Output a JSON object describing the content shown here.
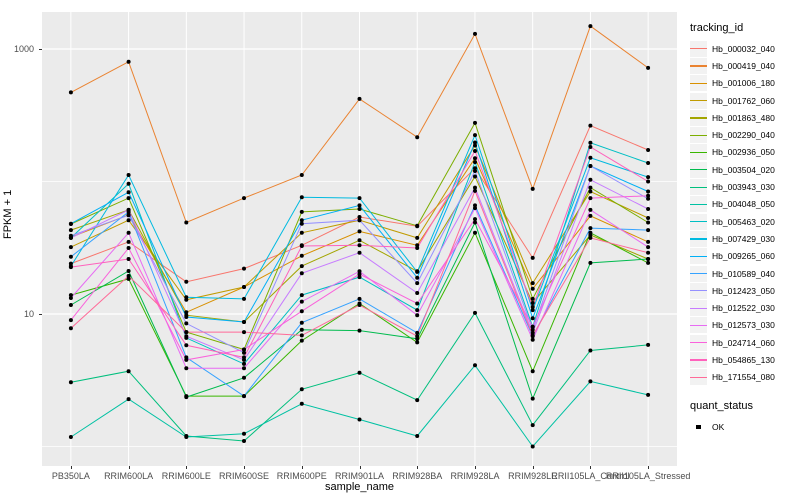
{
  "y_axis": {
    "title": "FPKM + 1",
    "scale": "log10",
    "ticks": [
      {
        "label": "1000",
        "value": 1000
      },
      {
        "label": "10",
        "value": 10
      }
    ],
    "minor_gridlines": [
      100,
      1
    ]
  },
  "x_axis": {
    "title": "sample_name",
    "categories": [
      "PB350LA",
      "RRIM600LA",
      "RRIM600LE",
      "RRIM600SE",
      "RRIM600PE",
      "RRIM901LA",
      "RRIM928BA",
      "RRIM928LA",
      "RRIM928LE",
      "RRII105LA_Control",
      "RRII105LA_Stressed"
    ]
  },
  "legend": {
    "tracking_title": "tracking_id",
    "quant_title": "quant_status",
    "quant_items": [
      {
        "label": "OK",
        "marker_color": "#000000"
      }
    ]
  },
  "style": {
    "panel_bg": "#EBEBEB",
    "grid_color": "#FFFFFF",
    "axis_text_color": "#4D4D4D",
    "point_color": "#000000"
  },
  "chart_data": {
    "type": "line",
    "title": "",
    "xlabel": "sample_name",
    "ylabel": "FPKM + 1",
    "y_scale": "log10",
    "ylim": [
      0.75,
      1900
    ],
    "grid": true,
    "legend_position": "right",
    "point_marker": "black dot (quant_status OK)",
    "categories": [
      "PB350LA",
      "RRIM600LA",
      "RRIM600LE",
      "RRIM600SE",
      "RRIM600PE",
      "RRIM901LA",
      "RRIM928BA",
      "RRIM928LA",
      "RRIM928LE",
      "RRII105LA_Control",
      "RRII105LA_Stressed"
    ],
    "series": [
      {
        "name": "Hb_000032_040",
        "color": "#F8766D",
        "values": [
          24,
          35,
          17.5,
          22,
          33,
          54,
          46,
          126,
          26.5,
          264,
          173
        ]
      },
      {
        "name": "Hb_000419_040",
        "color": "#EA8331",
        "values": [
          470,
          800,
          49,
          75,
          112,
          420,
          216,
          1300,
          88,
          1490,
          720
        ]
      },
      {
        "name": "Hb_001006_180",
        "color": "#D89000",
        "values": [
          38,
          56,
          10.3,
          16,
          27.5,
          42,
          33,
          150,
          15.5,
          55,
          35
        ]
      },
      {
        "name": "Hb_001762_060",
        "color": "#C09B00",
        "values": [
          32,
          51,
          12.8,
          16,
          41,
          51,
          37.5,
          187,
          17.1,
          84,
          53
        ]
      },
      {
        "name": "Hb_001863_480",
        "color": "#A3A500",
        "values": [
          43,
          61,
          9.8,
          8.7,
          23,
          36,
          21,
          109,
          12.1,
          39.5,
          26
        ]
      },
      {
        "name": "Hb_002290_040",
        "color": "#7CAE00",
        "values": [
          47.8,
          75,
          7.3,
          5.4,
          59,
          62,
          46.3,
          277,
          13,
          90,
          49
        ]
      },
      {
        "name": "Hb_002936_050",
        "color": "#39B600",
        "values": [
          13.9,
          18.4,
          2.4,
          2.4,
          6.3,
          12,
          6.1,
          41,
          3.7,
          41,
          24.3
        ]
      },
      {
        "name": "Hb_003504_020",
        "color": "#00BB4E",
        "values": [
          11.7,
          21.1,
          2.36,
          3.3,
          7.6,
          7.5,
          6.5,
          49,
          2.3,
          24.3,
          26
        ]
      },
      {
        "name": "Hb_003943_030",
        "color": "#00BF7D",
        "values": [
          3.05,
          3.7,
          1.2,
          1.1,
          2.7,
          3.6,
          2.24,
          10.2,
          1.45,
          5.3,
          5.85
        ]
      },
      {
        "name": "Hb_004048_050",
        "color": "#00C1A3",
        "values": [
          1.18,
          2.28,
          1.18,
          1.25,
          2.1,
          1.6,
          1.2,
          4.1,
          1.0,
          3.1,
          2.45
        ]
      },
      {
        "name": "Hb_005463_020",
        "color": "#00BFC4",
        "values": [
          37.5,
          96,
          6.6,
          4.2,
          13.9,
          19,
          10.7,
          140,
          8.0,
          196,
          138
        ]
      },
      {
        "name": "Hb_007429_030",
        "color": "#00BAE0",
        "values": [
          23,
          112,
          13.4,
          13,
          76,
          75,
          20.8,
          224,
          10.7,
          151,
          108
        ]
      },
      {
        "name": "Hb_009265_060",
        "color": "#00B0F6",
        "values": [
          48,
          83,
          9.5,
          8.7,
          51,
          66,
          18.8,
          197,
          9.3,
          131,
          84
        ]
      },
      {
        "name": "Hb_010589_040",
        "color": "#35A2FF",
        "values": [
          27,
          59,
          4.7,
          2.4,
          8.6,
          13,
          7.2,
          66,
          6.8,
          44.5,
          43
        ]
      },
      {
        "name": "Hb_012423_050",
        "color": "#9590FF",
        "values": [
          39,
          55.6,
          8.5,
          5.1,
          48,
          51,
          17.1,
          120,
          7.6,
          131,
          74
        ]
      },
      {
        "name": "Hb_012522_030",
        "color": "#C77CFF",
        "values": [
          37.5,
          61,
          6.8,
          4.5,
          20.3,
          29,
          14.4,
          90,
          7.2,
          103,
          62
        ]
      },
      {
        "name": "Hb_012573_030",
        "color": "#E76BF3",
        "values": [
          13.2,
          41,
          3.9,
          3.9,
          12.4,
          21,
          9.8,
          63,
          6.4,
          61,
          32
        ]
      },
      {
        "name": "Hb_024714_060",
        "color": "#FA62DB",
        "values": [
          9.0,
          31.5,
          4.5,
          5.4,
          10.5,
          20,
          12,
          52,
          8.0,
          75,
          78
        ]
      },
      {
        "name": "Hb_054865_130",
        "color": "#FF62BC",
        "values": [
          22.6,
          26,
          5.8,
          4.7,
          32.6,
          33,
          31.5,
          170,
          11.3,
          182,
          100
        ]
      },
      {
        "name": "Hb_171554_080",
        "color": "#FF6A98",
        "values": [
          7.8,
          19.4,
          7.3,
          7.3,
          6.9,
          11.7,
          6.8,
          85,
          6.9,
          37.5,
          29
        ]
      }
    ]
  }
}
